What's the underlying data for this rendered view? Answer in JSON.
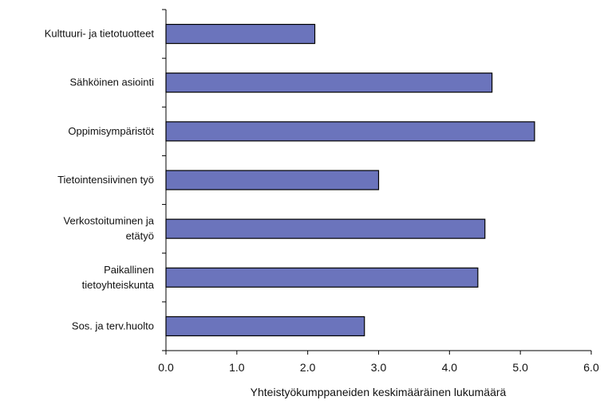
{
  "chart_data": {
    "type": "bar",
    "orientation": "horizontal",
    "categories": [
      "Kulttuuri- ja tietotuotteet",
      "Sähköinen asiointi",
      "Oppimisympäristöt",
      "Tietointensiivinen työ",
      "Verkostoituminen ja etätyö",
      "Paikallinen tietoyhteiskunta",
      "Sos. ja terv.huolto"
    ],
    "category_lines": [
      [
        "Kulttuuri- ja tietotuotteet"
      ],
      [
        "Sähköinen asiointi"
      ],
      [
        "Oppimisympäristöt"
      ],
      [
        "Tietointensiivinen työ"
      ],
      [
        "Verkostoituminen ja",
        "etätyö"
      ],
      [
        "Paikallinen",
        "tietoyhteiskunta"
      ],
      [
        "Sos. ja terv.huolto"
      ]
    ],
    "values": [
      2.1,
      4.6,
      5.2,
      3.0,
      4.5,
      4.4,
      2.8
    ],
    "xlabel": "Yhteistyökumppaneiden keskimääräinen lukumäärä",
    "xlim": [
      0,
      6
    ],
    "xticks": [
      "0.0",
      "1.0",
      "2.0",
      "3.0",
      "4.0",
      "5.0",
      "6.0"
    ],
    "grid": false,
    "bar_color": "#6b74bc",
    "bar_edge_color": "#000000"
  }
}
